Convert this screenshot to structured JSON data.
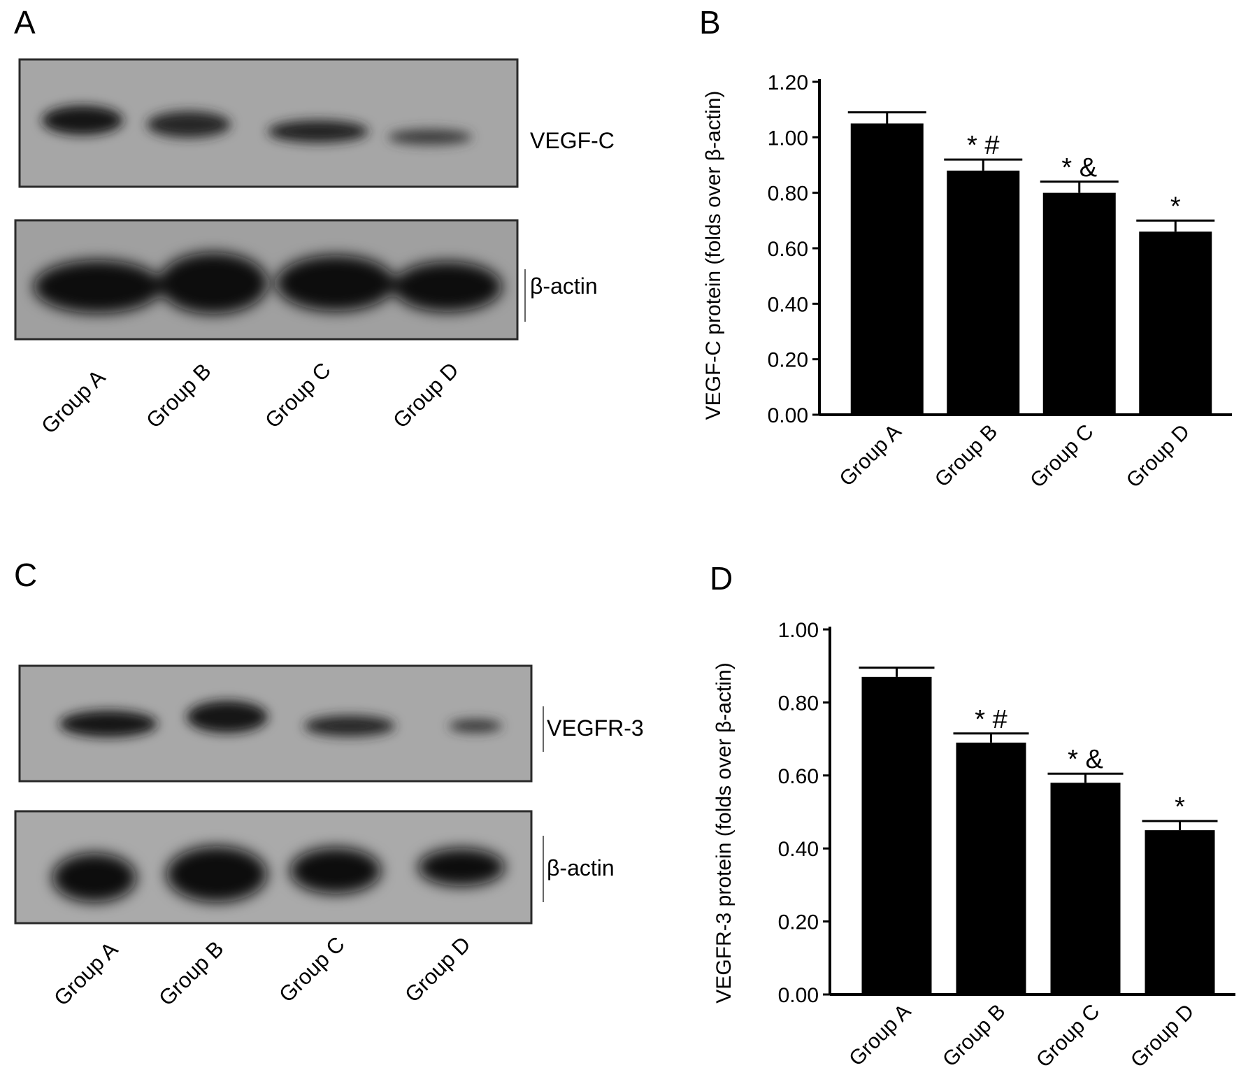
{
  "panels": {
    "a": {
      "label": "A",
      "blots": [
        {
          "name": "VEGF-C"
        },
        {
          "name": "β-actin"
        }
      ],
      "lanes": [
        "Group A",
        "Group B",
        "Group C",
        "Group D"
      ]
    },
    "c": {
      "label": "C",
      "blots": [
        {
          "name": "VEGFR-3"
        },
        {
          "name": "β-actin"
        }
      ],
      "lanes": [
        "Group A",
        "Group B",
        "Group C",
        "Group D"
      ]
    }
  },
  "chart_data": [
    {
      "panel": "B",
      "type": "bar",
      "categories": [
        "Group A",
        "Group B",
        "Group C",
        "Group D"
      ],
      "values": [
        1.05,
        0.88,
        0.8,
        0.66
      ],
      "error": [
        0.04,
        0.04,
        0.04,
        0.04
      ],
      "annotations": [
        "",
        "* #",
        "* &",
        "*"
      ],
      "ylabel": "VEGF-C protein (folds over β-actin)",
      "ylim": [
        0,
        1.2
      ],
      "yticks": [
        "0.00",
        "0.20",
        "0.40",
        "0.60",
        "0.80",
        "1.00",
        "1.20"
      ],
      "bar_color": "#000000"
    },
    {
      "panel": "D",
      "type": "bar",
      "categories": [
        "Group A",
        "Group B",
        "Group C",
        "Group D"
      ],
      "values": [
        0.87,
        0.69,
        0.58,
        0.45
      ],
      "error": [
        0.025,
        0.025,
        0.025,
        0.025
      ],
      "annotations": [
        "",
        "* #",
        "* &",
        "*"
      ],
      "ylabel": "VEGFR-3 protein (folds over β-actin)",
      "ylim": [
        0,
        1.0
      ],
      "yticks": [
        "0.00",
        "0.20",
        "0.40",
        "0.60",
        "0.80",
        "1.00"
      ],
      "bar_color": "#000000"
    }
  ]
}
